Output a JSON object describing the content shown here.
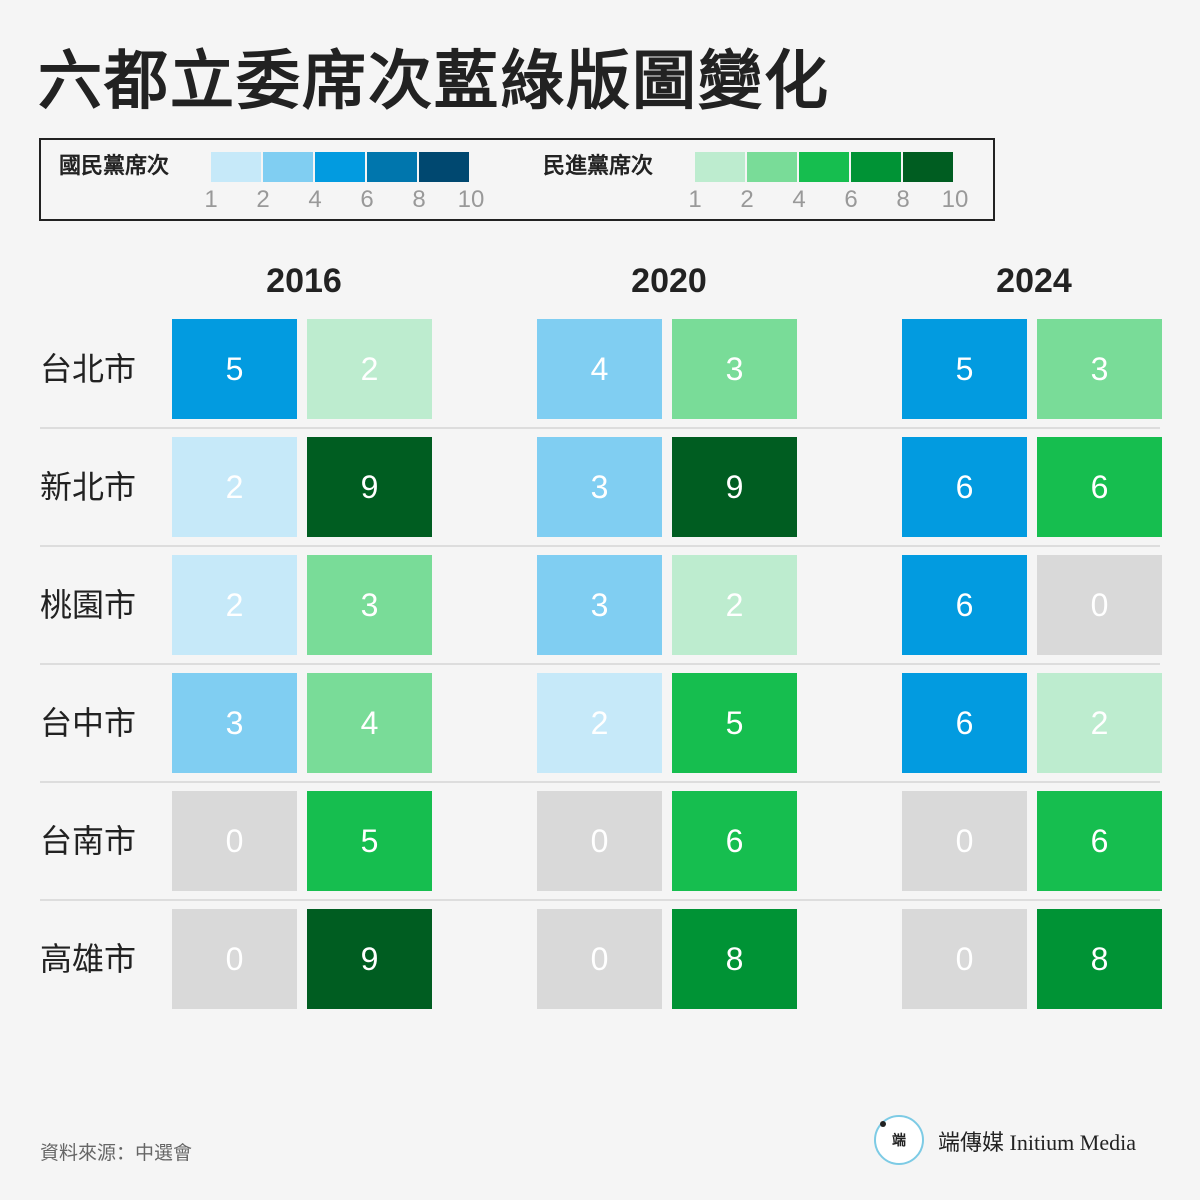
{
  "title": "六都立委席次藍綠版圖變化",
  "legend": {
    "kmt_label": "國民黨席次",
    "dpp_label": "民進黨席次",
    "ticks": [
      "1",
      "2",
      "4",
      "6",
      "8",
      "10"
    ],
    "kmt_colors": [
      "#c6e9f9",
      "#80cef2",
      "#029be0",
      "#0076ad",
      "#004870"
    ],
    "dpp_colors": [
      "#bdeccf",
      "#79dc98",
      "#16be4f",
      "#009335",
      "#005d21"
    ]
  },
  "zero_color": "#d9d9d9",
  "chart_data": {
    "type": "heatmap",
    "title": "六都立委席次藍綠版圖變化",
    "years": [
      "2016",
      "2020",
      "2024"
    ],
    "cities": [
      "台北市",
      "新北市",
      "桃園市",
      "台中市",
      "台南市",
      "高雄市"
    ],
    "series": [
      {
        "name": "國民黨席次",
        "values": [
          [
            5,
            4,
            5
          ],
          [
            2,
            3,
            6
          ],
          [
            2,
            3,
            6
          ],
          [
            3,
            2,
            6
          ],
          [
            0,
            0,
            0
          ],
          [
            0,
            0,
            0
          ]
        ]
      },
      {
        "name": "民進黨席次",
        "values": [
          [
            2,
            3,
            3
          ],
          [
            9,
            9,
            6
          ],
          [
            3,
            2,
            0
          ],
          [
            4,
            5,
            2
          ],
          [
            5,
            6,
            6
          ],
          [
            9,
            8,
            8
          ]
        ]
      }
    ]
  },
  "source": "資料來源：中選會",
  "brand": {
    "logo_text": "端",
    "name": "端傳媒 Initium Media"
  }
}
